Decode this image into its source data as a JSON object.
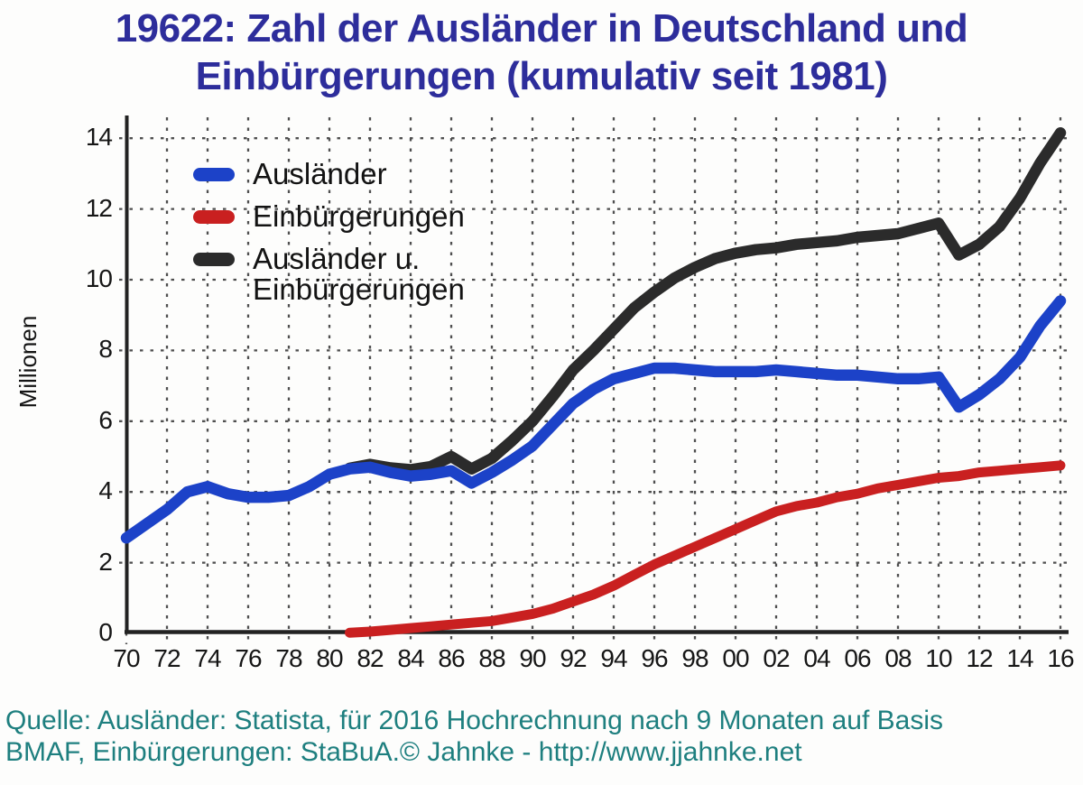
{
  "title": {
    "line1": "19622: Zahl der Ausländer in Deutschland und",
    "line2": "Einbürgerungen (kumulativ seit 1981)",
    "color": "#2d2d9b"
  },
  "axes": {
    "y_label": "Millionen"
  },
  "legend": {
    "items": [
      {
        "label": "Ausländer",
        "label2": ""
      },
      {
        "label": "Einbürgerungen",
        "label2": ""
      },
      {
        "label": "Ausländer u.",
        "label2": "Einbürgerungen"
      }
    ]
  },
  "footer": {
    "line1": "Quelle: Ausländer: Statista, für 2016 Hochrechnung nach 9 Monaten auf Basis",
    "line2": "BMAF, Einbürgerungen: StaBuA.© Jahnke - http://www.jjahnke.net",
    "color": "#1e7f7f"
  },
  "chart_data": {
    "type": "line",
    "title": "19622: Zahl der Ausländer in Deutschland und Einbürgerungen (kumulativ seit 1981)",
    "xlabel": "",
    "ylabel": "Millionen",
    "x_start": 1970,
    "x_end": 2016,
    "ylim": [
      0,
      14.6
    ],
    "grid": true,
    "grid_color": "#4f4f4f",
    "axis_color": "#222222",
    "legend_position": "top-left-inside",
    "xticks": [
      {
        "year": 1970,
        "label": "70"
      },
      {
        "year": 1972,
        "label": "72"
      },
      {
        "year": 1974,
        "label": "74"
      },
      {
        "year": 1976,
        "label": "76"
      },
      {
        "year": 1978,
        "label": "78"
      },
      {
        "year": 1980,
        "label": "80"
      },
      {
        "year": 1982,
        "label": "82"
      },
      {
        "year": 1984,
        "label": "84"
      },
      {
        "year": 1986,
        "label": "86"
      },
      {
        "year": 1988,
        "label": "88"
      },
      {
        "year": 1990,
        "label": "90"
      },
      {
        "year": 1992,
        "label": "92"
      },
      {
        "year": 1994,
        "label": "94"
      },
      {
        "year": 1996,
        "label": "96"
      },
      {
        "year": 1998,
        "label": "98"
      },
      {
        "year": 2000,
        "label": "00"
      },
      {
        "year": 2002,
        "label": "02"
      },
      {
        "year": 2004,
        "label": "04"
      },
      {
        "year": 2006,
        "label": "06"
      },
      {
        "year": 2008,
        "label": "08"
      },
      {
        "year": 2010,
        "label": "10"
      },
      {
        "year": 2012,
        "label": "12"
      },
      {
        "year": 2014,
        "label": "14"
      },
      {
        "year": 2016,
        "label": "16"
      }
    ],
    "yticks": [
      0,
      2,
      4,
      6,
      8,
      10,
      12,
      14
    ],
    "series": [
      {
        "id": "auslaender",
        "name": "Ausländer",
        "color": "#1c42c8",
        "start_year": 1970,
        "values": [
          2.7,
          3.1,
          3.5,
          4.0,
          4.15,
          3.95,
          3.85,
          3.85,
          3.9,
          4.15,
          4.5,
          4.65,
          4.7,
          4.55,
          4.45,
          4.5,
          4.6,
          4.25,
          4.55,
          4.9,
          5.3,
          5.9,
          6.5,
          6.9,
          7.2,
          7.35,
          7.5,
          7.5,
          7.45,
          7.4,
          7.4,
          7.4,
          7.45,
          7.4,
          7.35,
          7.3,
          7.3,
          7.25,
          7.2,
          7.2,
          7.25,
          6.4,
          6.75,
          7.2,
          7.8,
          8.7,
          9.4
        ]
      },
      {
        "id": "einbuergerungen",
        "name": "Einbürgerungen",
        "color": "#c92020",
        "start_year": 1981,
        "values": [
          0.02,
          0.05,
          0.1,
          0.15,
          0.2,
          0.25,
          0.3,
          0.35,
          0.45,
          0.55,
          0.7,
          0.9,
          1.1,
          1.35,
          1.65,
          1.95,
          2.2,
          2.45,
          2.7,
          2.95,
          3.2,
          3.45,
          3.6,
          3.7,
          3.85,
          3.95,
          4.1,
          4.2,
          4.3,
          4.4,
          4.45,
          4.55,
          4.6,
          4.65,
          4.7,
          4.75
        ]
      },
      {
        "id": "summe-auslaender-einbuergerungen",
        "name": "Ausländer u. Einbürgerungen",
        "color": "#2b2b2b",
        "start_year": 1981,
        "values": [
          4.67,
          4.78,
          4.68,
          4.63,
          4.72,
          5.0,
          4.65,
          4.95,
          5.45,
          6.0,
          6.7,
          7.45,
          8.0,
          8.6,
          9.2,
          9.65,
          10.05,
          10.35,
          10.6,
          10.75,
          10.85,
          10.9,
          11.0,
          11.05,
          11.1,
          11.2,
          11.25,
          11.3,
          11.45,
          11.6,
          10.7,
          11.0,
          11.5,
          12.3,
          13.3,
          14.15
        ]
      }
    ]
  }
}
